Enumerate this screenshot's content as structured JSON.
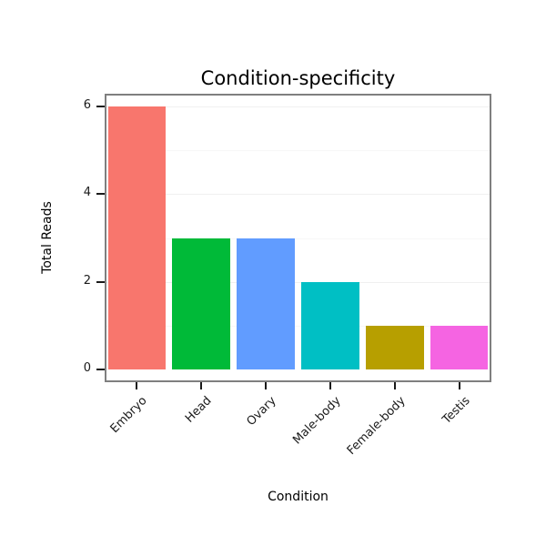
{
  "chart_data": {
    "type": "bar",
    "title": "Condition-specificity",
    "xlabel": "Condition",
    "ylabel": "Total Reads",
    "categories": [
      "Embryo",
      "Head",
      "Ovary",
      "Male-body",
      "Female-body",
      "Testis"
    ],
    "values": [
      6,
      3,
      3,
      2,
      1,
      1
    ],
    "colors": [
      "#F8766D",
      "#00BA38",
      "#619CFF",
      "#00BFC4",
      "#B79F00",
      "#F564E2"
    ],
    "ylim": [
      0,
      6
    ],
    "yticks": [
      0,
      2,
      4,
      6
    ],
    "grid": "faint horizontal gridlines on white panel",
    "legend": "none",
    "x_tick_label_rotation_deg": 45
  }
}
